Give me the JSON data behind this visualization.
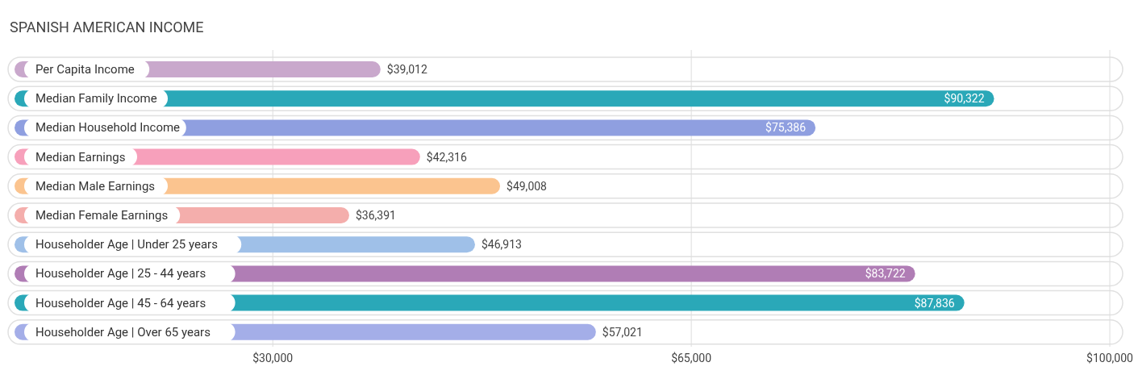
{
  "chart_data": {
    "type": "bar",
    "orientation": "horizontal",
    "title": "SPANISH AMERICAN INCOME",
    "categories": [
      "Per Capita Income",
      "Median Family Income",
      "Median Household Income",
      "Median Earnings",
      "Median Male Earnings",
      "Median Female Earnings",
      "Householder Age | Under 25 years",
      "Householder Age | 25 - 44 years",
      "Householder Age | 45 - 64 years",
      "Householder Age | Over 65 years"
    ],
    "values": [
      39012,
      90322,
      75386,
      42316,
      49008,
      36391,
      46913,
      83722,
      87836,
      57021
    ],
    "colors": [
      "#c9a8cc",
      "#2aa8b8",
      "#8f9fe0",
      "#f7a0bb",
      "#fbc48f",
      "#f4aeac",
      "#9fc0e8",
      "#b07db5",
      "#2aa8b8",
      "#a4aee8"
    ],
    "value_labels": [
      "$39,012",
      "$90,322",
      "$75,386",
      "$42,316",
      "$49,008",
      "$36,391",
      "$46,913",
      "$83,722",
      "$87,836",
      "$57,021"
    ],
    "xlim": [
      8400,
      100000
    ],
    "xticks": [
      {
        "value": 30000,
        "label": "$30,000"
      },
      {
        "value": 65000,
        "label": "$65,000"
      },
      {
        "value": 100000,
        "label": "$100,000"
      }
    ],
    "grid": "x"
  }
}
